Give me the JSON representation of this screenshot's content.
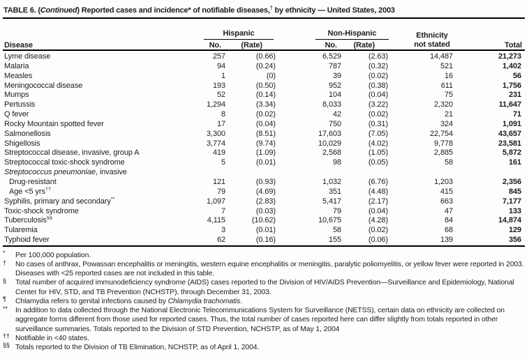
{
  "title": {
    "parts": [
      {
        "t": "TABLE 6. ("
      },
      {
        "t": "Continued",
        "i": true
      },
      {
        "t": ") Reported cases and incidence* of notifiable diseases,"
      },
      {
        "t": "†",
        "sup": true
      },
      {
        "t": " by ethnicity — United States, 2003"
      }
    ]
  },
  "table": {
    "header": {
      "disease": "Disease",
      "hispanic": "Hispanic",
      "non_hispanic": "Non-Hispanic",
      "no": "No.",
      "rate": "(Rate)",
      "ethnicity_not_stated": "Ethnicity not stated",
      "total": "Total"
    },
    "rows": [
      {
        "parts": [
          {
            "t": "Lyme disease"
          }
        ],
        "cells": [
          "257",
          "(0.66)",
          "6,529",
          "(2.63)",
          "14,487",
          "21,273"
        ]
      },
      {
        "parts": [
          {
            "t": "Malaria"
          }
        ],
        "cells": [
          "94",
          "(0.24)",
          "787",
          "(0.32)",
          "521",
          "1,402"
        ]
      },
      {
        "parts": [
          {
            "t": "Measles"
          }
        ],
        "cells": [
          "1",
          "(0)",
          "39",
          "(0.02)",
          "16",
          "56"
        ]
      },
      {
        "parts": [
          {
            "t": "Meningococcal disease"
          }
        ],
        "cells": [
          "193",
          "(0.50)",
          "952",
          "(0.38)",
          "611",
          "1,756"
        ]
      },
      {
        "parts": [
          {
            "t": "Mumps"
          }
        ],
        "cells": [
          "52",
          "(0.14)",
          "104",
          "(0.04)",
          "75",
          "231"
        ]
      },
      {
        "parts": [
          {
            "t": "Pertussis"
          }
        ],
        "cells": [
          "1,294",
          "(3.34)",
          "8,033",
          "(3.22)",
          "2,320",
          "11,647"
        ]
      },
      {
        "parts": [
          {
            "t": "Q fever"
          }
        ],
        "cells": [
          "8",
          "(0.02)",
          "42",
          "(0.02)",
          "21",
          "71"
        ]
      },
      {
        "parts": [
          {
            "t": "Rocky Mountain spotted fever"
          }
        ],
        "cells": [
          "17",
          "(0.04)",
          "750",
          "(0.31)",
          "324",
          "1,091"
        ]
      },
      {
        "parts": [
          {
            "t": "Salmonellosis"
          }
        ],
        "cells": [
          "3,300",
          "(8.51)",
          "17,603",
          "(7.05)",
          "22,754",
          "43,657"
        ]
      },
      {
        "parts": [
          {
            "t": "Shigellosis"
          }
        ],
        "cells": [
          "3,774",
          "(9.74)",
          "10,029",
          "(4.02)",
          "9,778",
          "23,581"
        ]
      },
      {
        "parts": [
          {
            "t": "Streptococcal disease, invasive, group A"
          }
        ],
        "cells": [
          "419",
          "(1.09)",
          "2,568",
          "(1.05)",
          "2,885",
          "5,872"
        ]
      },
      {
        "parts": [
          {
            "t": "Streptococcal toxic-shock syndrome"
          }
        ],
        "cells": [
          "5",
          "(0.01)",
          "98",
          "(0.05)",
          "58",
          "161"
        ]
      },
      {
        "parts": [
          {
            "t": "Streptococcus pneumoniae",
            "i": true
          },
          {
            "t": ", invasive"
          }
        ],
        "cells": [
          "",
          "",
          "",
          "",
          "",
          ""
        ]
      },
      {
        "parts": [
          {
            "t": "Drug-resistant"
          }
        ],
        "indent": true,
        "cells": [
          "121",
          "(0.93)",
          "1,032",
          "(6.76)",
          "1,203",
          "2,356"
        ]
      },
      {
        "parts": [
          {
            "t": "Age <5 yrs"
          },
          {
            "t": "††",
            "sup": true
          }
        ],
        "indent": true,
        "cells": [
          "79",
          "(4.69)",
          "351",
          "(4.48)",
          "415",
          "845"
        ]
      },
      {
        "parts": [
          {
            "t": "Syphilis, primary and secondary"
          },
          {
            "t": "**",
            "sup": true
          }
        ],
        "cells": [
          "1,097",
          "(2.83)",
          "5,417",
          "(2.17)",
          "663",
          "7,177"
        ]
      },
      {
        "parts": [
          {
            "t": "Toxic-shock syndrome"
          }
        ],
        "cells": [
          "7",
          "(0.03)",
          "79",
          "(0.04)",
          "47",
          "133"
        ]
      },
      {
        "parts": [
          {
            "t": "Tuberculosis"
          },
          {
            "t": "§§",
            "sup": true
          }
        ],
        "cells": [
          "4,115",
          "(10.62)",
          "10,675",
          "(4.28)",
          "84",
          "14,874"
        ]
      },
      {
        "parts": [
          {
            "t": "Tularemia"
          }
        ],
        "cells": [
          "3",
          "(0.01)",
          "58",
          "(0.02)",
          "68",
          "129"
        ]
      },
      {
        "parts": [
          {
            "t": "Typhoid fever"
          }
        ],
        "cells": [
          "62",
          "(0.16)",
          "155",
          "(0.06)",
          "139",
          "356"
        ]
      }
    ]
  },
  "footnotes": [
    {
      "marker": "*",
      "parts": [
        {
          "t": "Per 100,000 population."
        }
      ]
    },
    {
      "marker": "†",
      "parts": [
        {
          "t": "No cases of anthrax, Powassan encephalitis or meningitis, western equine encephalitis or meningitis, paralytic poliomyelitis, or yellow fever were reported in 2003. Diseases with <25 reported cases are not included in this table."
        }
      ]
    },
    {
      "marker": "§",
      "parts": [
        {
          "t": "Total number of acquired immunodeficiency syndrome (AIDS) cases reported to the Division of HIV/AIDS Prevention—Surveillance and Epidemiology, National Center for HIV, STD, and TB Prevention (NCHSTP), through December 31, 2003."
        }
      ]
    },
    {
      "marker": "¶",
      "parts": [
        {
          "t": "Chlamydia refers to genital infections caused by "
        },
        {
          "t": "Chlamydia trachomatis",
          "i": true
        },
        {
          "t": "."
        }
      ]
    },
    {
      "marker": "**",
      "parts": [
        {
          "t": "In addition to data collected through the National Electronic Telecommunications System for Surveillance (NETSS), certain data on ethnicity are collected on aggregate forms different from those used for reported cases. Thus, the total number of cases reported here can differ slightly from totals reported in other surveillance summaries. Totals reported to the Division of STD Prevention, NCHSTP, as of May 1, 2004"
        }
      ]
    },
    {
      "marker": "††",
      "parts": [
        {
          "t": "Notifiable in <40 states."
        }
      ]
    },
    {
      "marker": "§§",
      "parts": [
        {
          "t": "Totals reported to the Division of TB Elimination, NCHSTP, as of April 1, 2004."
        }
      ]
    }
  ]
}
